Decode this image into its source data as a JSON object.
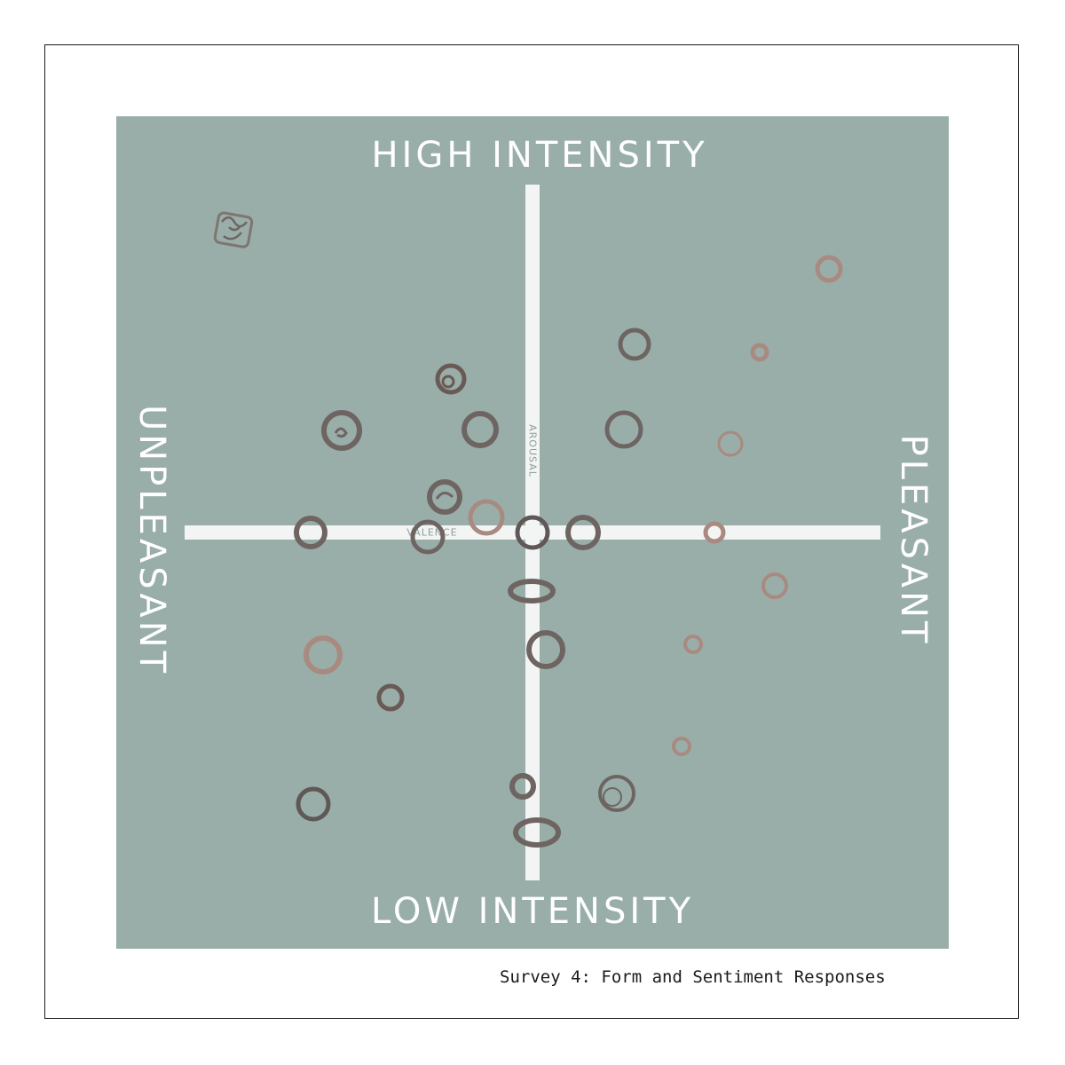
{
  "diagram": {
    "labels": {
      "top": "HIGH INTENSITY",
      "bottom": "LOW INTENSITY",
      "left": "UNPLEASANT",
      "right": "PLEASANT"
    },
    "axes": {
      "horizontal": "VALENCE",
      "vertical": "AROUSAL"
    },
    "colors": {
      "panel": "#99aea9",
      "axis": "#f3f5f4",
      "ring_grey": "#6e6562",
      "ring_pink": "#a98a80",
      "ring_brown": "#7a6660"
    },
    "caption": "Survey 4: Form and Sentiment Responses"
  }
}
